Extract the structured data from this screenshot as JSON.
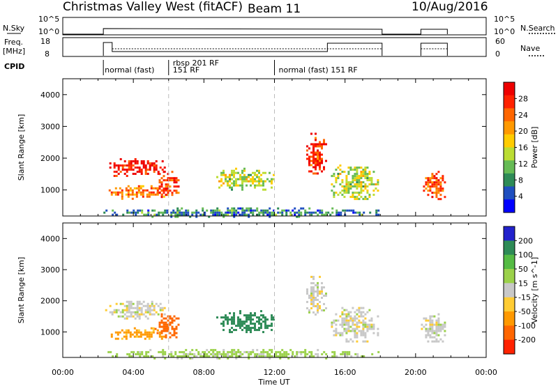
{
  "header": {
    "title": "Christmas Valley West (fitACF)",
    "beam": "Beam 11",
    "date": "10/Aug/2016"
  },
  "top_panels": {
    "nsky_label": "N.Sky",
    "nsky_ticks": [
      "10^5",
      "10^0"
    ],
    "nsearch_label": "N.Search",
    "nsearch_ticks": [
      "10^5",
      "10^0"
    ],
    "freq_label": "Freq.",
    "freq_unit": "[MHz]",
    "freq_ticks": [
      "18",
      "8"
    ],
    "nave_label": "Nave",
    "nave_ticks": [
      "60",
      "0"
    ],
    "cpid_label": "CPID",
    "cpid_segments": [
      {
        "label": "normal (fast)",
        "start_hour": 2.3
      },
      {
        "label": "rbsp 201 RF",
        "start_hour": 6.0
      },
      {
        "label": "151 RF",
        "start_hour": 6.0
      },
      {
        "label": "normal (fast) 151 RF",
        "start_hour": 12.0
      }
    ]
  },
  "colors": {
    "power": [
      "#0000ff",
      "#1f4fbf",
      "#2e8b57",
      "#66bb55",
      "#bbdd33",
      "#ffcc00",
      "#ff9900",
      "#ff6600",
      "#ff2200",
      "#ee0000"
    ],
    "velocity": [
      "#2222cc",
      "#2e8b57",
      "#55bb44",
      "#9bd14a",
      "#c8c8c8",
      "#ffcc33",
      "#ff9900",
      "#ff6600",
      "#ff2200",
      "#ee0000"
    ],
    "dashed_marker": "#bbbbbb"
  },
  "chart_data": [
    {
      "type": "heatmap",
      "name": "power",
      "ylabel": "Slant Range [km]",
      "xlabel": "Time UT",
      "colorbar_label": "Power [dB]",
      "colorbar_ticks": [
        "4",
        "8",
        "12",
        "16",
        "20",
        "24",
        "28"
      ],
      "xlim_hours": [
        0,
        24
      ],
      "ylim_km": [
        180,
        4500
      ],
      "x_ticks": [
        "00:00",
        "04:00",
        "08:00",
        "12:00",
        "16:00",
        "20:00",
        "00:00"
      ],
      "y_ticks": [
        1000,
        2000,
        3000,
        4000
      ],
      "regions": [
        {
          "t": [
            2.4,
            5.8
          ],
          "r": [
            1450,
            2000
          ],
          "value": 28
        },
        {
          "t": [
            2.6,
            5.9
          ],
          "r": [
            750,
            1150
          ],
          "value": 22
        },
        {
          "t": [
            5.2,
            6.6
          ],
          "r": [
            800,
            1600
          ],
          "value": 26
        },
        {
          "t": [
            8.7,
            12.0
          ],
          "r": [
            1000,
            1700
          ],
          "value": 14
        },
        {
          "t": [
            13.8,
            14.9
          ],
          "r": [
            1500,
            2800
          ],
          "value": 26
        },
        {
          "t": [
            15.2,
            17.9
          ],
          "r": [
            700,
            1800
          ],
          "value": 14
        },
        {
          "t": [
            20.3,
            21.7
          ],
          "r": [
            700,
            1600
          ],
          "value": 24
        },
        {
          "t": [
            2.3,
            18.0
          ],
          "r": [
            180,
            450
          ],
          "value": 8
        }
      ]
    },
    {
      "type": "heatmap",
      "name": "velocity",
      "ylabel": "Slant Range [km]",
      "xlabel": "Time UT",
      "colorbar_label": "Velocity [m s^-1]",
      "colorbar_ticks": [
        "200",
        "100",
        "50",
        "15",
        "-15",
        "-50",
        "-100",
        "-200"
      ],
      "xlim_hours": [
        0,
        24
      ],
      "ylim_km": [
        180,
        4500
      ],
      "x_ticks": [
        "00:00",
        "04:00",
        "08:00",
        "12:00",
        "16:00",
        "20:00",
        "00:00"
      ],
      "y_ticks": [
        1000,
        2000,
        3000,
        4000
      ],
      "regions": [
        {
          "t": [
            2.4,
            5.8
          ],
          "r": [
            1450,
            2000
          ],
          "value": 0
        },
        {
          "t": [
            2.6,
            5.9
          ],
          "r": [
            750,
            1150
          ],
          "value": -60
        },
        {
          "t": [
            5.2,
            6.6
          ],
          "r": [
            800,
            1600
          ],
          "value": -120
        },
        {
          "t": [
            8.7,
            12.0
          ],
          "r": [
            1000,
            1700
          ],
          "value": 150
        },
        {
          "t": [
            13.8,
            14.9
          ],
          "r": [
            1500,
            2800
          ],
          "value": 0
        },
        {
          "t": [
            15.2,
            17.9
          ],
          "r": [
            700,
            1800
          ],
          "value": 0
        },
        {
          "t": [
            20.3,
            21.7
          ],
          "r": [
            700,
            1600
          ],
          "value": 0
        },
        {
          "t": [
            2.3,
            18.0
          ],
          "r": [
            180,
            450
          ],
          "value": 30
        }
      ]
    }
  ]
}
